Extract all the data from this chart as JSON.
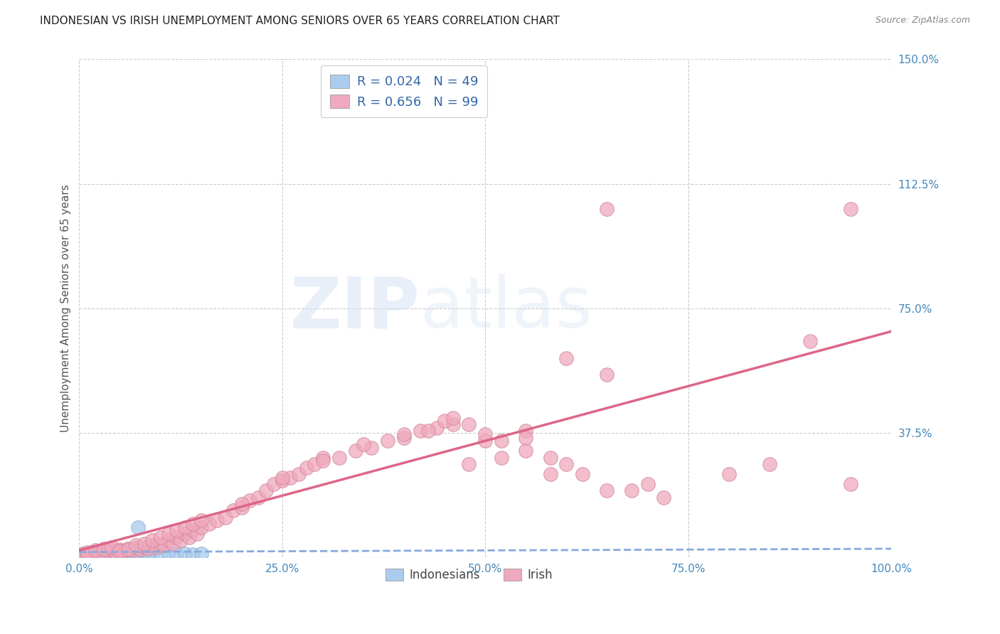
{
  "title": "INDONESIAN VS IRISH UNEMPLOYMENT AMONG SENIORS OVER 65 YEARS CORRELATION CHART",
  "source": "Source: ZipAtlas.com",
  "ylabel": "Unemployment Among Seniors over 65 years",
  "xlim": [
    0,
    100
  ],
  "ylim": [
    0,
    150
  ],
  "yticks": [
    0,
    37.5,
    75.0,
    112.5,
    150.0
  ],
  "ytick_labels": [
    "",
    "37.5%",
    "75.0%",
    "112.5%",
    "150.0%"
  ],
  "xtick_labels": [
    "0.0%",
    "25.0%",
    "50.0%",
    "75.0%",
    "100.0%"
  ],
  "xticks": [
    0,
    25,
    50,
    75,
    100
  ],
  "legend_entries": [
    {
      "label": "R = 0.024   N = 49",
      "color": "#aaccee"
    },
    {
      "label": "R = 0.656   N = 99",
      "color": "#f0a8be"
    }
  ],
  "bottom_legend": [
    "Indonesians",
    "Irish"
  ],
  "bottom_legend_colors": [
    "#aaccee",
    "#f0a8be"
  ],
  "indonesian_scatter": {
    "x": [
      0.5,
      1.0,
      1.2,
      1.5,
      1.8,
      2.0,
      2.2,
      2.5,
      2.8,
      3.0,
      3.2,
      3.5,
      3.8,
      4.0,
      4.2,
      4.5,
      5.0,
      5.5,
      6.0,
      6.5,
      7.0,
      7.5,
      8.0,
      9.0,
      10.0,
      11.0,
      12.0,
      13.0,
      14.0,
      0.8,
      1.1,
      1.4,
      1.7,
      2.1,
      2.4,
      2.7,
      3.1,
      3.4,
      3.7,
      4.1,
      4.4,
      4.7,
      5.2,
      5.7,
      6.2,
      6.7,
      7.2,
      8.5,
      15.0
    ],
    "y": [
      1.0,
      0.8,
      1.2,
      1.0,
      0.9,
      1.1,
      0.8,
      1.2,
      1.0,
      1.1,
      0.9,
      1.0,
      1.2,
      1.0,
      0.8,
      1.1,
      1.0,
      1.2,
      1.0,
      1.1,
      0.9,
      1.2,
      1.0,
      1.1,
      1.0,
      1.2,
      1.1,
      1.0,
      0.9,
      1.1,
      1.0,
      0.9,
      1.2,
      1.0,
      1.1,
      0.8,
      1.0,
      1.2,
      0.9,
      1.1,
      1.0,
      0.8,
      1.2,
      1.0,
      1.1,
      0.9,
      9.0,
      1.2,
      1.0
    ]
  },
  "irish_scatter": {
    "x": [
      0.5,
      1.0,
      1.5,
      2.0,
      2.5,
      3.0,
      3.5,
      4.0,
      4.5,
      5.0,
      5.5,
      6.0,
      6.5,
      7.0,
      7.5,
      8.0,
      8.5,
      9.0,
      9.5,
      10.0,
      10.5,
      11.0,
      11.5,
      12.0,
      12.5,
      13.0,
      13.5,
      14.0,
      14.5,
      15.0,
      16.0,
      17.0,
      18.0,
      19.0,
      20.0,
      21.0,
      22.0,
      23.0,
      24.0,
      25.0,
      26.0,
      27.0,
      28.0,
      29.0,
      30.0,
      32.0,
      34.0,
      36.0,
      38.0,
      40.0,
      42.0,
      44.0,
      46.0,
      48.0,
      50.0,
      52.0,
      55.0,
      58.0,
      60.0,
      65.0,
      70.0,
      80.0,
      85.0,
      90.0,
      95.0,
      1.0,
      2.0,
      3.0,
      4.0,
      5.0,
      6.0,
      7.0,
      8.0,
      9.0,
      10.0,
      11.0,
      12.0,
      13.0,
      14.0,
      15.0,
      20.0,
      25.0,
      30.0,
      35.0,
      40.0,
      45.0,
      50.0,
      55.0,
      60.0,
      65.0,
      43.0,
      46.0,
      48.0,
      52.0,
      55.0,
      58.0,
      62.0,
      68.0,
      72.0
    ],
    "y": [
      1.0,
      0.8,
      1.2,
      1.5,
      1.0,
      1.2,
      1.8,
      2.0,
      1.5,
      2.2,
      1.8,
      2.5,
      2.0,
      2.8,
      2.2,
      3.0,
      2.5,
      3.5,
      3.0,
      4.0,
      3.5,
      5.0,
      4.0,
      6.0,
      5.0,
      7.0,
      6.0,
      8.0,
      7.0,
      9.0,
      10.0,
      11.0,
      12.0,
      14.0,
      15.0,
      17.0,
      18.0,
      20.0,
      22.0,
      23.0,
      24.0,
      25.0,
      27.0,
      28.0,
      30.0,
      30.0,
      32.0,
      33.0,
      35.0,
      36.0,
      38.0,
      39.0,
      40.0,
      28.0,
      35.0,
      30.0,
      32.0,
      25.0,
      28.0,
      20.0,
      22.0,
      25.0,
      28.0,
      65.0,
      22.0,
      1.5,
      2.0,
      2.5,
      3.0,
      1.8,
      2.2,
      3.5,
      4.0,
      5.0,
      6.0,
      7.0,
      8.0,
      9.0,
      10.0,
      11.0,
      16.0,
      24.0,
      29.0,
      34.0,
      37.0,
      41.0,
      37.0,
      38.0,
      60.0,
      55.0,
      38.0,
      42.0,
      40.0,
      35.0,
      36.0,
      30.0,
      25.0,
      20.0,
      18.0
    ]
  },
  "irish_outliers": {
    "x": [
      65.0,
      95.0
    ],
    "y": [
      105.0,
      105.0
    ]
  },
  "irish_line": {
    "x0": 0,
    "x1": 100,
    "y0": 2.0,
    "y1": 68.0
  },
  "indonesian_line": {
    "x0": 0,
    "x1": 100,
    "y0": 1.5,
    "y1": 2.5
  },
  "watermark_zip": "ZIP",
  "watermark_atlas": "atlas",
  "title_color": "#222222",
  "scatter_blue_color": "#aaccee",
  "scatter_blue_edge": "#88aacc",
  "scatter_pink_color": "#f0a8be",
  "scatter_pink_edge": "#d08898",
  "line_blue_color": "#88aadd",
  "line_pink_color": "#dd6688",
  "grid_color": "#cccccc",
  "axis_label_color": "#4488bb",
  "background_color": "#ffffff",
  "source_color": "#888888"
}
